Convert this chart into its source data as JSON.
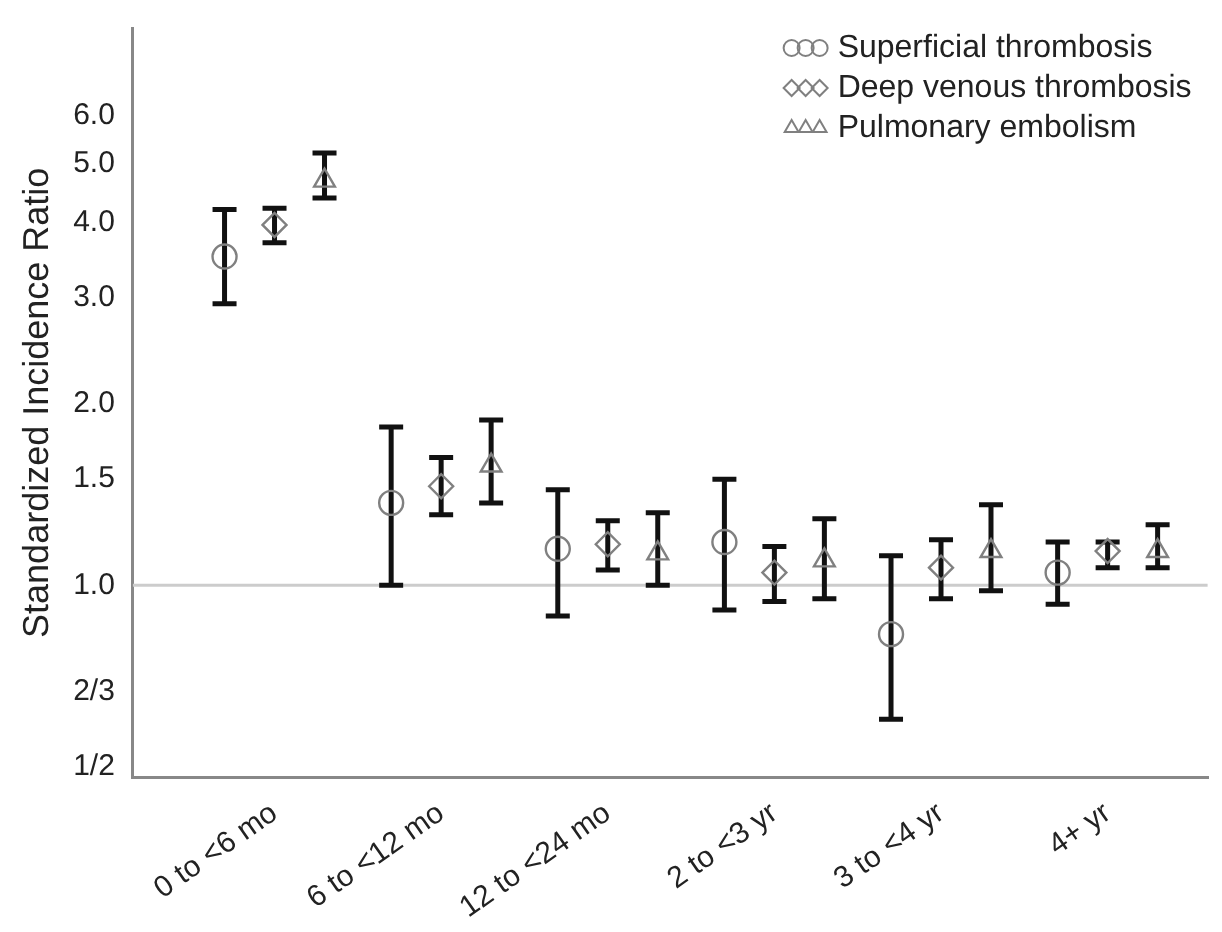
{
  "chart_data": {
    "type": "scatter",
    "ylabel": "Standardized Incidence Ratio",
    "categories": [
      "0 to <6 mo",
      "6 to <12 mo",
      "12 to <24 mo",
      "2 to <3 yr",
      "3 to <4 yr",
      "4+ yr"
    ],
    "log": "y",
    "ylim": [
      0.48,
      8.4
    ],
    "yticks": [
      {
        "value": 0.5,
        "label": "1/2"
      },
      {
        "value": 0.6667,
        "label": "2/3"
      },
      {
        "value": 1,
        "label": "1.0"
      },
      {
        "value": 1.5,
        "label": "1.5"
      },
      {
        "value": 2,
        "label": "2.0"
      },
      {
        "value": 3,
        "label": "3.0"
      },
      {
        "value": 4,
        "label": "4.0"
      },
      {
        "value": 5,
        "label": "5.0"
      },
      {
        "value": 6,
        "label": "6.0"
      }
    ],
    "grid": false,
    "legend": "top right",
    "ref_lines": [
      {
        "axis": "y",
        "value": 1,
        "color": "#cccccc"
      }
    ],
    "series": [
      {
        "name": "Superficial thrombosis",
        "color": "#808080",
        "marker": "circle",
        "values": [
          3.51,
          1.37,
          1.15,
          1.18,
          0.83,
          1.05
        ],
        "errors": [
          [
            2.93,
            4.2
          ],
          [
            1.0,
            1.83
          ],
          [
            0.89,
            1.44
          ],
          [
            0.91,
            1.5
          ],
          [
            0.6,
            1.12
          ],
          [
            0.93,
            1.18
          ]
        ]
      },
      {
        "name": "Deep venous thrombosis",
        "color": "#808080",
        "marker": "diamond",
        "values": [
          3.96,
          1.46,
          1.17,
          1.05,
          1.07,
          1.14
        ],
        "errors": [
          [
            3.7,
            4.22
          ],
          [
            1.31,
            1.63
          ],
          [
            1.06,
            1.28
          ],
          [
            0.94,
            1.16
          ],
          [
            0.95,
            1.19
          ],
          [
            1.07,
            1.18
          ]
        ]
      },
      {
        "name": "Pulmonary embolism",
        "color": "#808080",
        "marker": "triangle",
        "values": [
          4.69,
          1.58,
          1.13,
          1.1,
          1.14,
          1.14
        ],
        "errors": [
          [
            4.39,
            5.21
          ],
          [
            1.37,
            1.88
          ],
          [
            1.0,
            1.32
          ],
          [
            0.95,
            1.29
          ],
          [
            0.98,
            1.36
          ],
          [
            1.07,
            1.26
          ]
        ]
      }
    ]
  }
}
